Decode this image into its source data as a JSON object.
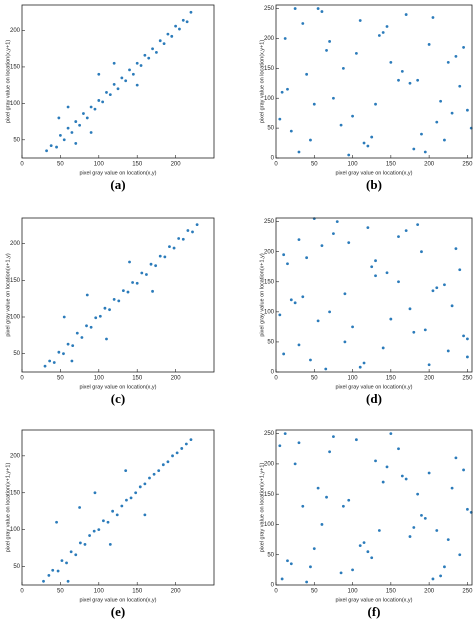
{
  "chart_data": [
    {
      "type": "scatter",
      "caption": "(a)",
      "xlabel": "pixel gray value on location(x,y)",
      "ylabel": "pixel gray value on location(x,y+1)",
      "color": "#2b7bba",
      "xlim": [
        0,
        250
      ],
      "ylim": [
        25,
        235
      ],
      "xticks": [
        0,
        50,
        100,
        150,
        200
      ],
      "yticks": [
        50,
        100,
        150,
        200
      ],
      "x": [
        32,
        38,
        45,
        50,
        55,
        60,
        65,
        70,
        75,
        80,
        85,
        90,
        95,
        100,
        105,
        110,
        115,
        120,
        125,
        130,
        135,
        140,
        145,
        150,
        155,
        160,
        165,
        170,
        175,
        180,
        185,
        190,
        195,
        200,
        205,
        210,
        215,
        220,
        60,
        90,
        120,
        150,
        48,
        70,
        100
      ],
      "y": [
        35,
        42,
        40,
        56,
        50,
        66,
        60,
        75,
        70,
        86,
        80,
        95,
        92,
        104,
        102,
        115,
        112,
        126,
        120,
        135,
        131,
        146,
        140,
        155,
        152,
        166,
        162,
        175,
        170,
        186,
        182,
        195,
        192,
        206,
        202,
        214,
        212,
        225,
        95,
        60,
        155,
        125,
        80,
        45,
        140
      ]
    },
    {
      "type": "scatter",
      "caption": "(b)",
      "xlabel": "pixel gray value on location(x,y)",
      "ylabel": "pixel gray value on location(x,y+1)",
      "color": "#2b7bba",
      "xlim": [
        0,
        256
      ],
      "ylim": [
        0,
        256
      ],
      "xticks": [
        0,
        50,
        100,
        150,
        200,
        250
      ],
      "yticks": [
        0,
        50,
        100,
        150,
        200,
        250
      ],
      "x": [
        12,
        45,
        88,
        130,
        170,
        210,
        240,
        30,
        66,
        100,
        145,
        190,
        225,
        8,
        55,
        120,
        160,
        200,
        250,
        20,
        75,
        110,
        180,
        235,
        40,
        95,
        140,
        215,
        5,
        60,
        125,
        175,
        245,
        35,
        85,
        150,
        195,
        230,
        15,
        70,
        115,
        165,
        205,
        255,
        50,
        105,
        135,
        185,
        220,
        25
      ],
      "y": [
        200,
        30,
        150,
        90,
        240,
        60,
        120,
        10,
        180,
        70,
        220,
        40,
        160,
        110,
        250,
        20,
        130,
        190,
        80,
        45,
        100,
        230,
        15,
        170,
        140,
        5,
        210,
        95,
        65,
        245,
        35,
        125,
        185,
        225,
        55,
        160,
        10,
        75,
        115,
        195,
        25,
        145,
        235,
        50,
        90,
        175,
        205,
        130,
        30,
        250
      ]
    },
    {
      "type": "scatter",
      "caption": "(c)",
      "xlabel": "pixel gray value on location(x,y)",
      "ylabel": "pixel gray value on location(x+1,y)",
      "color": "#2b7bba",
      "xlim": [
        0,
        250
      ],
      "ylim": [
        25,
        235
      ],
      "xticks": [
        0,
        50,
        100,
        150,
        200
      ],
      "yticks": [
        50,
        100,
        150,
        200
      ],
      "x": [
        30,
        36,
        42,
        48,
        54,
        60,
        66,
        72,
        78,
        84,
        90,
        96,
        102,
        108,
        114,
        120,
        126,
        132,
        138,
        144,
        150,
        156,
        162,
        168,
        174,
        180,
        186,
        192,
        198,
        204,
        210,
        216,
        222,
        228,
        55,
        85,
        110,
        140,
        170,
        65
      ],
      "y": [
        33,
        40,
        38,
        52,
        50,
        63,
        61,
        78,
        72,
        88,
        86,
        99,
        101,
        112,
        110,
        124,
        122,
        136,
        134,
        147,
        146,
        160,
        158,
        172,
        170,
        183,
        182,
        196,
        194,
        207,
        206,
        218,
        216,
        226,
        100,
        130,
        70,
        175,
        135,
        40
      ]
    },
    {
      "type": "scatter",
      "caption": "(d)",
      "xlabel": "pixel gray value on location(x,y)",
      "ylabel": "pixel gray value on location(x+1,y)",
      "color": "#2b7bba",
      "xlim": [
        0,
        256
      ],
      "ylim": [
        0,
        256
      ],
      "xticks": [
        0,
        50,
        100,
        150,
        200,
        250
      ],
      "yticks": [
        0,
        50,
        100,
        150,
        200,
        250
      ],
      "x": [
        200,
        30,
        150,
        90,
        240,
        60,
        120,
        10,
        180,
        70,
        220,
        40,
        160,
        110,
        250,
        20,
        130,
        190,
        80,
        45,
        100,
        230,
        15,
        170,
        140,
        5,
        210,
        95,
        65,
        245,
        35,
        125,
        185,
        225,
        55,
        160,
        10,
        75,
        115,
        195,
        25,
        145,
        235,
        50,
        90,
        175,
        205,
        130,
        30,
        250
      ],
      "y": [
        12,
        45,
        88,
        130,
        170,
        210,
        240,
        30,
        66,
        100,
        145,
        190,
        225,
        8,
        55,
        120,
        160,
        200,
        250,
        20,
        75,
        110,
        180,
        235,
        40,
        95,
        140,
        215,
        5,
        60,
        125,
        175,
        245,
        35,
        85,
        150,
        195,
        230,
        15,
        70,
        115,
        165,
        205,
        255,
        50,
        105,
        135,
        185,
        220,
        25
      ]
    },
    {
      "type": "scatter",
      "caption": "(e)",
      "xlabel": "pixel gray value on location(x,y)",
      "ylabel": "pixel gray value on location(x+1,y+1)",
      "color": "#2b7bba",
      "xlim": [
        0,
        250
      ],
      "ylim": [
        25,
        235
      ],
      "xticks": [
        0,
        50,
        100,
        150,
        200
      ],
      "yticks": [
        50,
        100,
        150,
        200
      ],
      "x": [
        28,
        35,
        40,
        47,
        52,
        58,
        64,
        70,
        76,
        82,
        88,
        94,
        100,
        106,
        112,
        118,
        124,
        130,
        136,
        142,
        148,
        154,
        160,
        166,
        172,
        178,
        184,
        190,
        196,
        202,
        208,
        214,
        220,
        45,
        60,
        75,
        95,
        115,
        135,
        160
      ],
      "y": [
        30,
        38,
        45,
        44,
        58,
        55,
        70,
        66,
        82,
        80,
        92,
        98,
        100,
        112,
        110,
        125,
        120,
        132,
        140,
        143,
        150,
        158,
        162,
        170,
        175,
        180,
        188,
        192,
        200,
        204,
        210,
        216,
        222,
        110,
        30,
        130,
        150,
        80,
        180,
        120
      ]
    },
    {
      "type": "scatter",
      "caption": "(f)",
      "xlabel": "pixel gray value on location(x,y)",
      "ylabel": "pixel gray value on location(x+1,y+1)",
      "color": "#2b7bba",
      "xlim": [
        0,
        256
      ],
      "ylim": [
        0,
        256
      ],
      "xticks": [
        0,
        50,
        100,
        150,
        200,
        250
      ],
      "yticks": [
        0,
        50,
        100,
        150,
        200,
        250
      ],
      "x": [
        25,
        220,
        185,
        135,
        105,
        50,
        255,
        205,
        165,
        115,
        70,
        15,
        230,
        195,
        150,
        85,
        35,
        245,
        175,
        125,
        60,
        5,
        215,
        140,
        95,
        40,
        235,
        180,
        110,
        75,
        20,
        250,
        200,
        160,
        120,
        55,
        8,
        225,
        190,
        145,
        100,
        66,
        30,
        240,
        210,
        170,
        130,
        88,
        45,
        12
      ],
      "y": [
        200,
        30,
        150,
        90,
        240,
        60,
        120,
        10,
        180,
        70,
        220,
        40,
        160,
        110,
        250,
        20,
        130,
        190,
        80,
        45,
        100,
        230,
        15,
        170,
        140,
        5,
        210,
        95,
        65,
        245,
        35,
        125,
        185,
        225,
        55,
        160,
        10,
        75,
        115,
        195,
        25,
        145,
        235,
        50,
        90,
        175,
        205,
        130,
        30,
        250
      ]
    }
  ]
}
